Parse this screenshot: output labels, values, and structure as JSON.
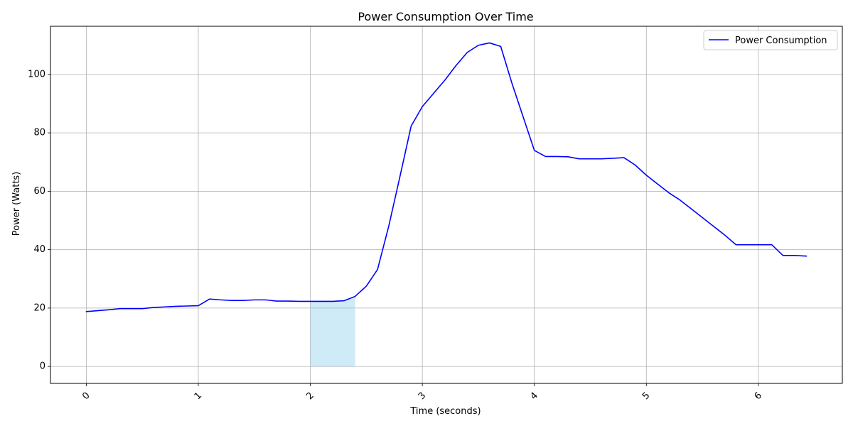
{
  "chart_data": {
    "type": "line",
    "title": "Power Consumption Over Time",
    "xlabel": "Time (seconds)",
    "ylabel": "Power (Watts)",
    "xlim": [
      -0.32,
      6.75
    ],
    "ylim": [
      -5.8,
      116.5
    ],
    "x_ticks": [
      0,
      1,
      2,
      3,
      4,
      5,
      6
    ],
    "x_tick_labels": [
      "0",
      "1",
      "2",
      "3",
      "4",
      "5",
      "6"
    ],
    "x_tick_rotation": -45,
    "y_ticks": [
      0,
      20,
      40,
      60,
      80,
      100
    ],
    "y_tick_labels": [
      "0",
      "20",
      "40",
      "60",
      "80",
      "100"
    ],
    "grid": true,
    "legend_position": "top-right",
    "series": [
      {
        "name": "Power Consumption",
        "color": "#0000ff",
        "x": [
          0,
          0.1,
          0.2,
          0.3,
          0.4,
          0.5,
          0.6,
          0.7,
          0.8,
          0.9,
          1.0,
          1.1,
          1.2,
          1.3,
          1.4,
          1.5,
          1.6,
          1.7,
          1.8,
          1.9,
          2.0,
          2.1,
          2.2,
          2.3,
          2.4,
          2.5,
          2.6,
          2.7,
          2.8,
          2.9,
          3.0,
          3.1,
          3.2,
          3.3,
          3.4,
          3.5,
          3.6,
          3.7,
          3.8,
          3.9,
          4.0,
          4.1,
          4.2,
          4.3,
          4.4,
          4.5,
          4.6,
          4.7,
          4.8,
          4.9,
          5.0,
          5.1,
          5.2,
          5.3,
          5.4,
          5.5,
          5.6,
          5.7,
          5.8,
          5.9,
          6.0,
          6.12,
          6.22,
          6.32,
          6.43
        ],
        "y": [
          18.8,
          19.1,
          19.4,
          19.8,
          19.8,
          19.8,
          20.2,
          20.4,
          20.6,
          20.7,
          20.8,
          23.1,
          22.8,
          22.6,
          22.6,
          22.8,
          22.8,
          22.4,
          22.4,
          22.3,
          22.3,
          22.3,
          22.3,
          22.5,
          24.0,
          27.5,
          33.2,
          48.0,
          65.0,
          82.3,
          89.0,
          93.5,
          98.0,
          103.0,
          107.5,
          110.0,
          110.8,
          109.6,
          97.0,
          85.5,
          74.0,
          71.9,
          71.9,
          71.8,
          71.1,
          71.1,
          71.1,
          71.3,
          71.5,
          69.0,
          65.5,
          62.5,
          59.5,
          57.0,
          54.0,
          51.0,
          48.0,
          45.0,
          41.7,
          41.7,
          41.7,
          41.7,
          38.0,
          38.0,
          37.8
        ]
      }
    ],
    "highlight": {
      "x_start": 2.0,
      "x_end": 2.4,
      "color": "#87ceeb",
      "opacity": 0.4
    }
  }
}
